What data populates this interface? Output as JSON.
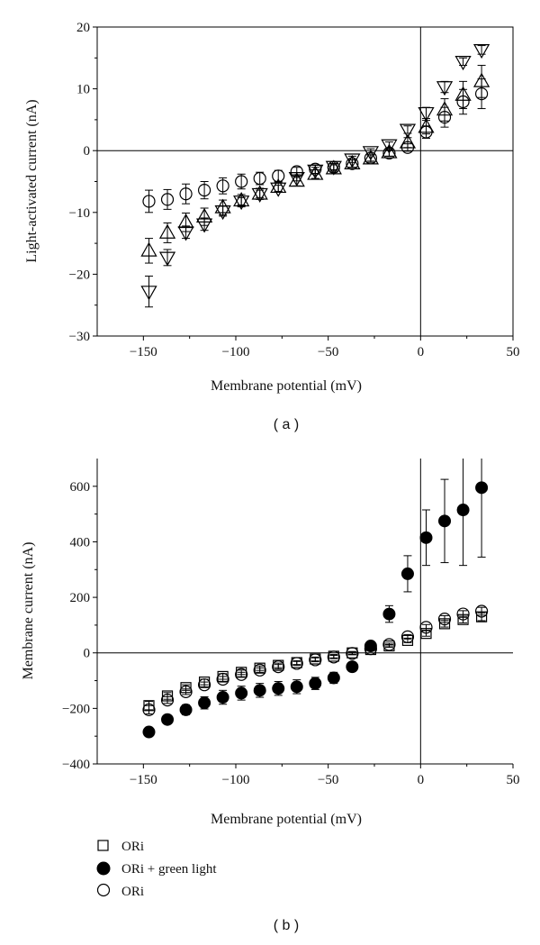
{
  "chart_data": [
    {
      "type": "scatter",
      "panel_label": "( a )",
      "xlabel": "Membrane potential (mV)",
      "ylabel": "Light-activated current (nA)",
      "xlim": [
        -175,
        50
      ],
      "ylim": [
        -30,
        20
      ],
      "x_ticks": [
        -150,
        -100,
        -50,
        0,
        50
      ],
      "x_tick_labels": [
        "−150",
        "−100",
        "−50",
        "0",
        "50"
      ],
      "y_ticks": [
        -30,
        -20,
        -10,
        0,
        10,
        20
      ],
      "y_tick_labels": [
        "−30",
        "−20",
        "−10",
        "0",
        "10",
        "20"
      ],
      "zero_lines": true,
      "grid": false,
      "legend": null,
      "series": [
        {
          "marker": "triangle-up",
          "x": [
            -147,
            -137,
            -127,
            -117,
            -107,
            -97,
            -87,
            -77,
            -67,
            -57,
            -47,
            -37,
            -27,
            -17,
            -7,
            3,
            13,
            23,
            33
          ],
          "y": [
            -16.2,
            -13.3,
            -11.6,
            -10.7,
            -9.2,
            -8.1,
            -7.0,
            -5.9,
            -4.9,
            -3.8,
            -2.9,
            -2.1,
            -1.3,
            -0.3,
            1.3,
            3.8,
            6.6,
            9.0,
            11.2
          ],
          "err": [
            2.0,
            1.6,
            1.5,
            1.4,
            1.2,
            1.0,
            0.9,
            0.8,
            0.8,
            0.7,
            0.6,
            0.6,
            0.6,
            0.6,
            0.8,
            1.1,
            1.8,
            2.2,
            2.6
          ]
        },
        {
          "marker": "triangle-down",
          "x": [
            -147,
            -137,
            -127,
            -117,
            -107,
            -97,
            -87,
            -77,
            -67,
            -57,
            -47,
            -37,
            -27,
            -17,
            -7,
            3,
            13,
            23,
            33
          ],
          "y": [
            -22.8,
            -17.3,
            -13.2,
            -11.9,
            -9.8,
            -8.2,
            -7.0,
            -6.1,
            -4.4,
            -3.2,
            -2.6,
            -1.4,
            -0.2,
            0.9,
            3.4,
            6.1,
            10.3,
            14.4,
            16.3
          ],
          "err": [
            2.5,
            1.3,
            1.0,
            1.0,
            0.8,
            0.6,
            0.6,
            0.5,
            0.5,
            0.5,
            0.5,
            0.5,
            0.5,
            0.5,
            0.6,
            0.9,
            0.9,
            0.6,
            0.7
          ]
        },
        {
          "marker": "circle-open",
          "x": [
            -147,
            -137,
            -127,
            -117,
            -107,
            -97,
            -87,
            -77,
            -67,
            -57,
            -47,
            -37,
            -27,
            -17,
            -7,
            3,
            13,
            23,
            33
          ],
          "y": [
            -8.2,
            -7.9,
            -7.0,
            -6.4,
            -5.7,
            -5.0,
            -4.5,
            -4.1,
            -3.4,
            -3.0,
            -2.7,
            -2.1,
            -1.2,
            -0.4,
            0.5,
            3.0,
            5.4,
            7.9,
            9.2
          ],
          "err": [
            1.8,
            1.6,
            1.6,
            1.4,
            1.3,
            1.2,
            1.0,
            0.9,
            0.7,
            0.7,
            0.6,
            0.6,
            0.5,
            0.5,
            0.6,
            1.0,
            1.6,
            2.0,
            2.4
          ]
        }
      ]
    },
    {
      "type": "scatter",
      "panel_label": "( b )",
      "xlabel": "Membrane potential (mV)",
      "ylabel": "Membrane current (nA)",
      "xlim": [
        -175,
        50
      ],
      "ylim": [
        -400,
        700
      ],
      "x_ticks": [
        -150,
        -100,
        -50,
        0,
        50
      ],
      "x_tick_labels": [
        "−150",
        "−100",
        "−50",
        "0",
        "50"
      ],
      "y_ticks": [
        -400,
        -200,
        0,
        200,
        400,
        600
      ],
      "y_tick_labels": [
        "−400",
        "−200",
        "0",
        "200",
        "400",
        "600"
      ],
      "zero_lines": true,
      "grid": false,
      "legend": "bottom-left",
      "series": [
        {
          "name": "ORi",
          "marker": "square-open",
          "x": [
            -147,
            -137,
            -127,
            -117,
            -107,
            -97,
            -87,
            -77,
            -67,
            -57,
            -47,
            -37,
            -27,
            -17,
            -7,
            3,
            13,
            23,
            33
          ],
          "y": [
            -190,
            -155,
            -125,
            -105,
            -85,
            -70,
            -55,
            -45,
            -35,
            -22,
            -12,
            0,
            12,
            25,
            45,
            70,
            105,
            120,
            130
          ],
          "err": [
            15,
            12,
            10,
            10,
            10,
            8,
            8,
            8,
            7,
            7,
            6,
            5,
            5,
            5,
            8,
            10,
            12,
            12,
            14
          ]
        },
        {
          "name": "ORi + green light",
          "marker": "circle-filled",
          "x": [
            -147,
            -137,
            -127,
            -117,
            -107,
            -97,
            -87,
            -77,
            -67,
            -57,
            -47,
            -37,
            -27,
            -17,
            -7,
            3,
            13,
            23,
            33
          ],
          "y": [
            -285,
            -240,
            -205,
            -180,
            -160,
            -145,
            -135,
            -128,
            -122,
            -110,
            -90,
            -50,
            25,
            140,
            285,
            415,
            475,
            515,
            595
          ],
          "err": [
            10,
            12,
            18,
            22,
            25,
            25,
            25,
            25,
            25,
            22,
            20,
            10,
            10,
            30,
            65,
            100,
            150,
            200,
            250
          ]
        },
        {
          "name": "ORi",
          "marker": "circle-open",
          "x": [
            -147,
            -137,
            -127,
            -117,
            -107,
            -97,
            -87,
            -77,
            -67,
            -57,
            -47,
            -37,
            -27,
            -17,
            -7,
            3,
            13,
            23,
            33
          ],
          "y": [
            -205,
            -170,
            -140,
            -115,
            -95,
            -78,
            -62,
            -50,
            -38,
            -25,
            -15,
            -2,
            15,
            30,
            58,
            92,
            122,
            140,
            150
          ],
          "err": [
            15,
            12,
            10,
            10,
            10,
            8,
            8,
            8,
            7,
            7,
            6,
            5,
            5,
            5,
            8,
            10,
            12,
            12,
            14
          ]
        }
      ]
    }
  ]
}
